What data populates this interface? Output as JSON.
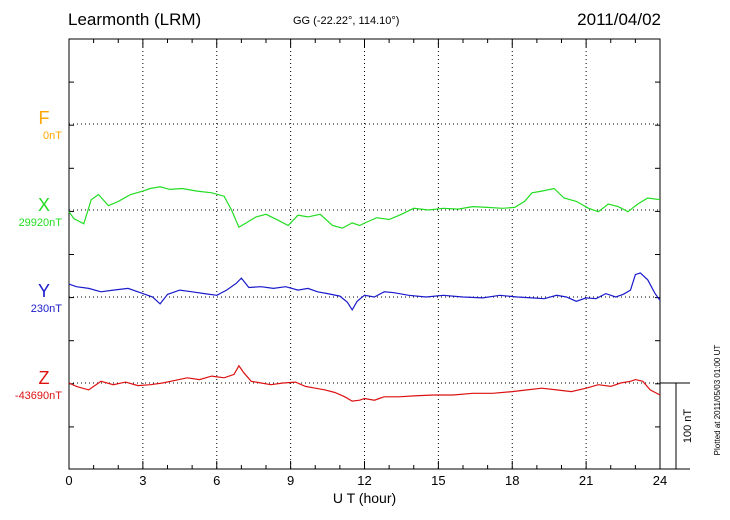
{
  "header": {
    "station": "Learmonth (LRM)",
    "coords": "GG (-22.22°, 114.10°)",
    "date": "2011/04/02"
  },
  "side_note": "Plotted at 2011/05/03 01:00 UT",
  "scale_label": "100 nT",
  "chart_data": {
    "type": "line",
    "xlabel": "U T (hour)",
    "xlim": [
      0,
      24
    ],
    "xticks": [
      0,
      3,
      6,
      9,
      12,
      15,
      18,
      21,
      24
    ],
    "grid": true,
    "scale_bar_nT": 100,
    "series": [
      {
        "name": "F",
        "baseline_label": "0nT",
        "color": "#ffa500",
        "x": [],
        "values": []
      },
      {
        "name": "X",
        "baseline_label": "29920nT",
        "color": "#22dd22",
        "x": [
          0,
          0.2,
          0.6,
          0.9,
          1.2,
          1.6,
          2.0,
          2.5,
          3.0,
          3.3,
          3.7,
          4.1,
          4.6,
          5.2,
          5.8,
          6.3,
          6.6,
          6.9,
          7.2,
          7.6,
          8.0,
          8.5,
          8.9,
          9.3,
          9.7,
          10.2,
          10.7,
          11.1,
          11.5,
          11.8,
          12.1,
          12.5,
          13.0,
          13.5,
          14.0,
          14.6,
          15.2,
          15.8,
          16.4,
          17.0,
          17.6,
          18.1,
          18.5,
          18.8,
          19.2,
          19.7,
          20.1,
          20.6,
          21.1,
          21.5,
          21.9,
          22.3,
          22.7,
          23.1,
          23.5,
          24.0
        ],
        "values": [
          -2,
          -10,
          -16,
          12,
          18,
          5,
          10,
          18,
          22,
          25,
          27,
          24,
          25,
          22,
          20,
          16,
          0,
          -20,
          -15,
          -8,
          -5,
          -12,
          -18,
          -6,
          -8,
          -5,
          -18,
          -21,
          -15,
          -18,
          -14,
          -9,
          -11,
          -5,
          2,
          0,
          2,
          1,
          4,
          3,
          2,
          3,
          10,
          20,
          22,
          25,
          14,
          10,
          2,
          -2,
          7,
          4,
          -2,
          7,
          14,
          12
        ]
      },
      {
        "name": "Y",
        "baseline_label": "230nT",
        "color": "#1a1acc",
        "x": [
          0,
          0.3,
          0.8,
          1.3,
          1.8,
          2.4,
          2.9,
          3.4,
          3.7,
          4.0,
          4.5,
          5.0,
          5.5,
          6.0,
          6.4,
          6.8,
          7.0,
          7.3,
          7.8,
          8.3,
          8.8,
          9.3,
          9.7,
          10.1,
          10.5,
          11.0,
          11.3,
          11.5,
          11.7,
          12.0,
          12.4,
          12.8,
          13.2,
          13.8,
          14.5,
          15.2,
          16.0,
          16.8,
          17.5,
          18.2,
          18.8,
          19.3,
          19.8,
          20.2,
          20.6,
          21.0,
          21.4,
          21.8,
          22.2,
          22.5,
          22.8,
          23.0,
          23.2,
          23.5,
          23.8,
          24.0
        ],
        "values": [
          15,
          12,
          10,
          6,
          8,
          10,
          5,
          0,
          -8,
          3,
          8,
          6,
          4,
          2,
          8,
          16,
          22,
          11,
          12,
          10,
          12,
          8,
          10,
          6,
          4,
          1,
          -6,
          -15,
          -5,
          2,
          0,
          6,
          5,
          2,
          0,
          2,
          0,
          -1,
          2,
          0,
          -1,
          -2,
          2,
          0,
          -5,
          -1,
          -2,
          4,
          0,
          3,
          8,
          26,
          28,
          20,
          4,
          -4
        ]
      },
      {
        "name": "Z",
        "baseline_label": "-43690nT",
        "color": "#dd1111",
        "x": [
          0,
          0.3,
          0.8,
          1.3,
          1.8,
          2.3,
          2.8,
          3.3,
          3.8,
          4.3,
          4.8,
          5.3,
          5.8,
          6.3,
          6.7,
          6.9,
          7.1,
          7.4,
          7.8,
          8.2,
          8.7,
          9.2,
          9.6,
          10.0,
          10.4,
          10.8,
          11.2,
          11.5,
          11.8,
          12.0,
          12.4,
          12.8,
          13.4,
          14.0,
          14.8,
          15.6,
          16.4,
          17.2,
          18.0,
          18.6,
          19.2,
          19.8,
          20.4,
          21.0,
          21.5,
          22.0,
          22.4,
          22.8,
          23.0,
          23.3,
          23.6,
          24.0
        ],
        "values": [
          0,
          -4,
          -8,
          2,
          -2,
          1,
          -3,
          -2,
          0,
          3,
          6,
          4,
          8,
          6,
          10,
          20,
          12,
          2,
          0,
          -2,
          0,
          1,
          -4,
          -6,
          -8,
          -11,
          -16,
          -21,
          -20,
          -18,
          -20,
          -16,
          -16,
          -15,
          -14,
          -14,
          -12,
          -12,
          -10,
          -8,
          -6,
          -8,
          -10,
          -6,
          -2,
          -4,
          0,
          2,
          4,
          2,
          -8,
          -14
        ]
      }
    ]
  }
}
